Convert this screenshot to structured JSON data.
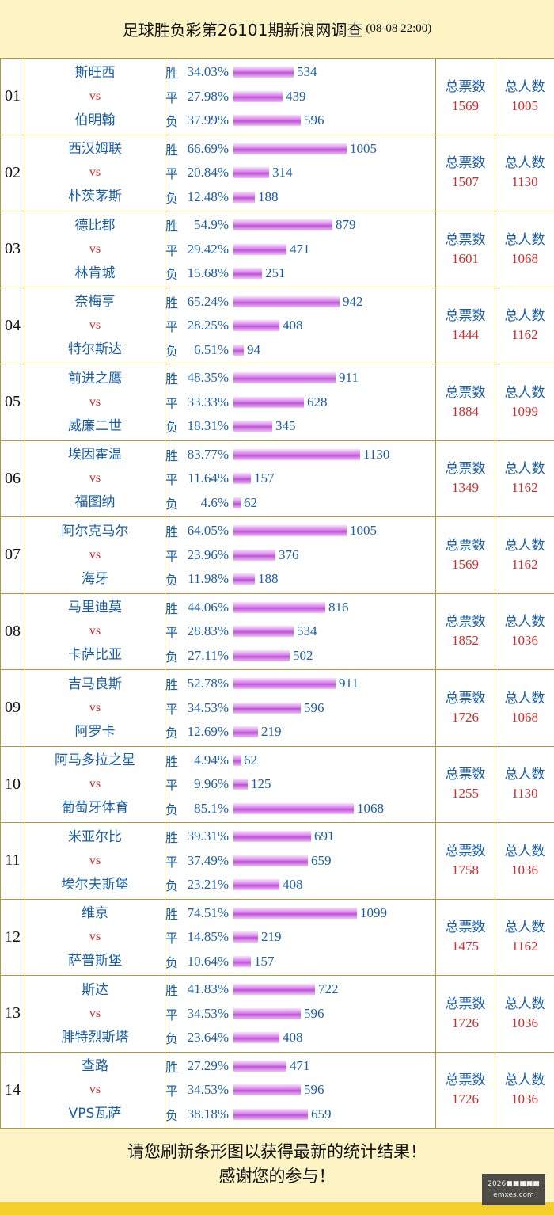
{
  "header": {
    "title": "足球胜负彩第26101期新浪网调查",
    "time": "(08-08 22:00)"
  },
  "labels": {
    "win": "胜",
    "draw": "平",
    "loss": "负",
    "vs": "vs",
    "total_votes": "总票数",
    "total_people": "总人数"
  },
  "matches": [
    {
      "num": "01",
      "home": "斯旺西",
      "away": "伯明翰",
      "win_pct": "34.03%",
      "win": 534,
      "draw_pct": "27.98%",
      "draw": 439,
      "loss_pct": "37.99%",
      "loss": 596,
      "total_votes": "1569",
      "total_people": "1005"
    },
    {
      "num": "02",
      "home": "西汉姆联",
      "away": "朴茨茅斯",
      "win_pct": "66.69%",
      "win": 1005,
      "draw_pct": "20.84%",
      "draw": 314,
      "loss_pct": "12.48%",
      "loss": 188,
      "total_votes": "1507",
      "total_people": "1130"
    },
    {
      "num": "03",
      "home": "德比郡",
      "away": "林肯城",
      "win_pct": "54.9%",
      "win": 879,
      "draw_pct": "29.42%",
      "draw": 471,
      "loss_pct": "15.68%",
      "loss": 251,
      "total_votes": "1601",
      "total_people": "1068"
    },
    {
      "num": "04",
      "home": "奈梅亨",
      "away": "特尔斯达",
      "win_pct": "65.24%",
      "win": 942,
      "draw_pct": "28.25%",
      "draw": 408,
      "loss_pct": "6.51%",
      "loss": 94,
      "total_votes": "1444",
      "total_people": "1162"
    },
    {
      "num": "05",
      "home": "前进之鹰",
      "away": "威廉二世",
      "win_pct": "48.35%",
      "win": 911,
      "draw_pct": "33.33%",
      "draw": 628,
      "loss_pct": "18.31%",
      "loss": 345,
      "total_votes": "1884",
      "total_people": "1099"
    },
    {
      "num": "06",
      "home": "埃因霍温",
      "away": "福图纳",
      "win_pct": "83.77%",
      "win": 1130,
      "draw_pct": "11.64%",
      "draw": 157,
      "loss_pct": "4.6%",
      "loss": 62,
      "total_votes": "1349",
      "total_people": "1162"
    },
    {
      "num": "07",
      "home": "阿尔克马尔",
      "away": "海牙",
      "win_pct": "64.05%",
      "win": 1005,
      "draw_pct": "23.96%",
      "draw": 376,
      "loss_pct": "11.98%",
      "loss": 188,
      "total_votes": "1569",
      "total_people": "1162"
    },
    {
      "num": "08",
      "home": "马里迪莫",
      "away": "卡萨比亚",
      "win_pct": "44.06%",
      "win": 816,
      "draw_pct": "28.83%",
      "draw": 534,
      "loss_pct": "27.11%",
      "loss": 502,
      "total_votes": "1852",
      "total_people": "1036"
    },
    {
      "num": "09",
      "home": "吉马良斯",
      "away": "阿罗卡",
      "win_pct": "52.78%",
      "win": 911,
      "draw_pct": "34.53%",
      "draw": 596,
      "loss_pct": "12.69%",
      "loss": 219,
      "total_votes": "1726",
      "total_people": "1068"
    },
    {
      "num": "10",
      "home": "阿马多拉之星",
      "away": "葡萄牙体育",
      "win_pct": "4.94%",
      "win": 62,
      "draw_pct": "9.96%",
      "draw": 125,
      "loss_pct": "85.1%",
      "loss": 1068,
      "total_votes": "1255",
      "total_people": "1130"
    },
    {
      "num": "11",
      "home": "米亚尔比",
      "away": "埃尔夫斯堡",
      "win_pct": "39.31%",
      "win": 691,
      "draw_pct": "37.49%",
      "draw": 659,
      "loss_pct": "23.21%",
      "loss": 408,
      "total_votes": "1758",
      "total_people": "1036"
    },
    {
      "num": "12",
      "home": "维京",
      "away": "萨普斯堡",
      "win_pct": "74.51%",
      "win": 1099,
      "draw_pct": "14.85%",
      "draw": 219,
      "loss_pct": "10.64%",
      "loss": 157,
      "total_votes": "1475",
      "total_people": "1162"
    },
    {
      "num": "13",
      "home": "斯达",
      "away": "腓特烈斯塔",
      "win_pct": "41.83%",
      "win": 722,
      "draw_pct": "34.53%",
      "draw": 596,
      "loss_pct": "23.64%",
      "loss": 408,
      "total_votes": "1726",
      "total_people": "1036"
    },
    {
      "num": "14",
      "home": "查路",
      "away": "VPS瓦萨",
      "win_pct": "27.29%",
      "win": 471,
      "draw_pct": "34.53%",
      "draw": 596,
      "loss_pct": "38.18%",
      "loss": 659,
      "total_votes": "1726",
      "total_people": "1036"
    }
  ],
  "footer": {
    "line1": "请您刷新条形图以获得最新的统计结果！",
    "line2": "感谢您的参与！"
  },
  "watermark": {
    "line1": "2026■■■■■",
    "line2": "emxes.com"
  }
}
